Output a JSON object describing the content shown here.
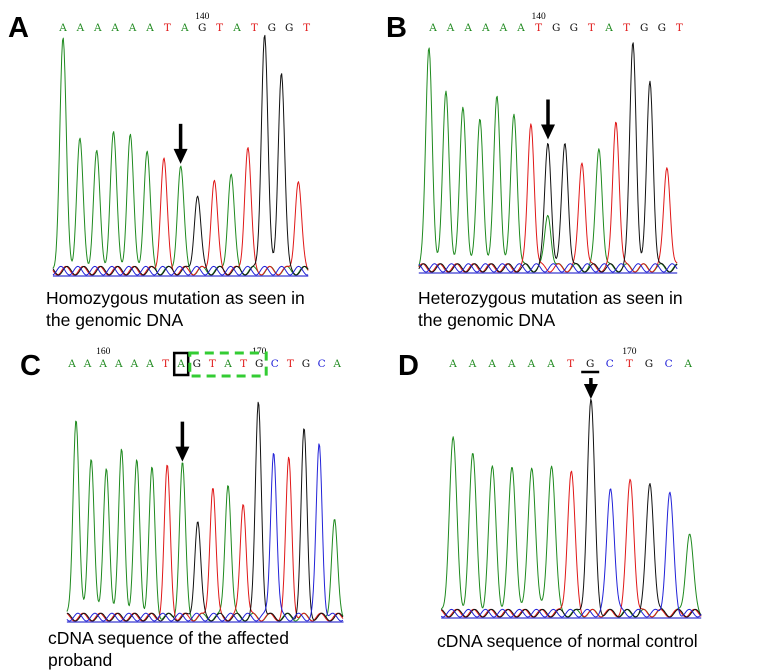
{
  "figure": {
    "panels": [
      {
        "id": "A",
        "label": "A",
        "caption": "Homozygous mutation as seen in\nthe genomic DNA",
        "bases": [
          "A",
          "A",
          "A",
          "A",
          "A",
          "A",
          "T",
          "A",
          "G",
          "T",
          "A",
          "T",
          "G",
          "G",
          "T"
        ],
        "position_markers": [
          {
            "label": "140",
            "base_index": 8
          }
        ],
        "arrow_base_index": 7,
        "peaks": [
          {
            "base": "A",
            "height": 0.97
          },
          {
            "base": "A",
            "height": 0.55
          },
          {
            "base": "A",
            "height": 0.5
          },
          {
            "base": "A",
            "height": 0.58
          },
          {
            "base": "A",
            "height": 0.57
          },
          {
            "base": "A",
            "height": 0.5
          },
          {
            "base": "T",
            "height": 0.47
          },
          {
            "base": "A",
            "height": 0.44
          },
          {
            "base": "G",
            "height": 0.32
          },
          {
            "base": "T",
            "height": 0.38
          },
          {
            "base": "A",
            "height": 0.41
          },
          {
            "base": "T",
            "height": 0.52
          },
          {
            "base": "G",
            "height": 1.0
          },
          {
            "base": "G",
            "height": 0.84
          },
          {
            "base": "T",
            "height": 0.38
          }
        ]
      },
      {
        "id": "B",
        "label": "B",
        "caption": "Heterozygous mutation as seen in\nthe genomic DNA",
        "bases": [
          "A",
          "A",
          "A",
          "A",
          "A",
          "A",
          "T",
          "G",
          "G",
          "T",
          "A",
          "T",
          "G",
          "G",
          "T"
        ],
        "position_markers": [
          {
            "label": "140",
            "base_index": 6
          }
        ],
        "arrow_base_index": 7,
        "secondary_peak": {
          "base_index": 7,
          "base": "A",
          "height": 0.24
        },
        "peaks": [
          {
            "base": "A",
            "height": 0.97
          },
          {
            "base": "A",
            "height": 0.78
          },
          {
            "base": "A",
            "height": 0.71
          },
          {
            "base": "A",
            "height": 0.66
          },
          {
            "base": "A",
            "height": 0.76
          },
          {
            "base": "A",
            "height": 0.68
          },
          {
            "base": "T",
            "height": 0.64
          },
          {
            "base": "G",
            "height": 0.55
          },
          {
            "base": "G",
            "height": 0.55
          },
          {
            "base": "T",
            "height": 0.47
          },
          {
            "base": "A",
            "height": 0.53
          },
          {
            "base": "T",
            "height": 0.65
          },
          {
            "base": "G",
            "height": 0.99
          },
          {
            "base": "G",
            "height": 0.82
          },
          {
            "base": "T",
            "height": 0.45
          }
        ]
      },
      {
        "id": "C",
        "label": "C",
        "caption": "cDNA sequence of the affected\nproband",
        "bases": [
          "A",
          "A",
          "A",
          "A",
          "A",
          "A",
          "T",
          "A",
          "G",
          "T",
          "A",
          "T",
          "G",
          "C",
          "T",
          "G",
          "C",
          "A"
        ],
        "position_markers": [
          {
            "label": "160",
            "base_index": 2
          },
          {
            "label": "170",
            "base_index": 12
          }
        ],
        "boxed_base_index": 7,
        "dashed_box_base_range": [
          8,
          12
        ],
        "arrow_base_index": 7,
        "peaks": [
          {
            "base": "A",
            "height": 0.93
          },
          {
            "base": "A",
            "height": 0.75
          },
          {
            "base": "A",
            "height": 0.7
          },
          {
            "base": "A",
            "height": 0.78
          },
          {
            "base": "A",
            "height": 0.72
          },
          {
            "base": "A",
            "height": 0.68
          },
          {
            "base": "T",
            "height": 0.69
          },
          {
            "base": "A",
            "height": 0.71
          },
          {
            "base": "G",
            "height": 0.45
          },
          {
            "base": "T",
            "height": 0.61
          },
          {
            "base": "A",
            "height": 0.63
          },
          {
            "base": "T",
            "height": 0.54
          },
          {
            "base": "G",
            "height": 1.0
          },
          {
            "base": "C",
            "height": 0.78
          },
          {
            "base": "T",
            "height": 0.73
          },
          {
            "base": "G",
            "height": 0.86
          },
          {
            "base": "C",
            "height": 0.8
          },
          {
            "base": "A",
            "height": 0.45
          }
        ]
      },
      {
        "id": "D",
        "label": "D",
        "caption": "cDNA sequence of normal control",
        "bases": [
          "A",
          "A",
          "A",
          "A",
          "A",
          "A",
          "T",
          "G",
          "C",
          "T",
          "G",
          "C",
          "A"
        ],
        "position_markers": [
          {
            "label": "170",
            "base_index": 9
          }
        ],
        "underlined_base_index": 7,
        "arrow_base_index": 7,
        "peaks": [
          {
            "base": "A",
            "height": 0.83
          },
          {
            "base": "A",
            "height": 0.74
          },
          {
            "base": "A",
            "height": 0.68
          },
          {
            "base": "A",
            "height": 0.69
          },
          {
            "base": "A",
            "height": 0.7
          },
          {
            "base": "A",
            "height": 0.71
          },
          {
            "base": "T",
            "height": 0.67
          },
          {
            "base": "G",
            "height": 1.0
          },
          {
            "base": "C",
            "height": 0.6
          },
          {
            "base": "T",
            "height": 0.63
          },
          {
            "base": "G",
            "height": 0.62
          },
          {
            "base": "C",
            "height": 0.56
          },
          {
            "base": "A",
            "height": 0.38
          }
        ]
      }
    ],
    "base_colors": {
      "A": "#1f8a1f",
      "T": "#e01818",
      "G": "#111111",
      "C": "#2222d8"
    }
  }
}
